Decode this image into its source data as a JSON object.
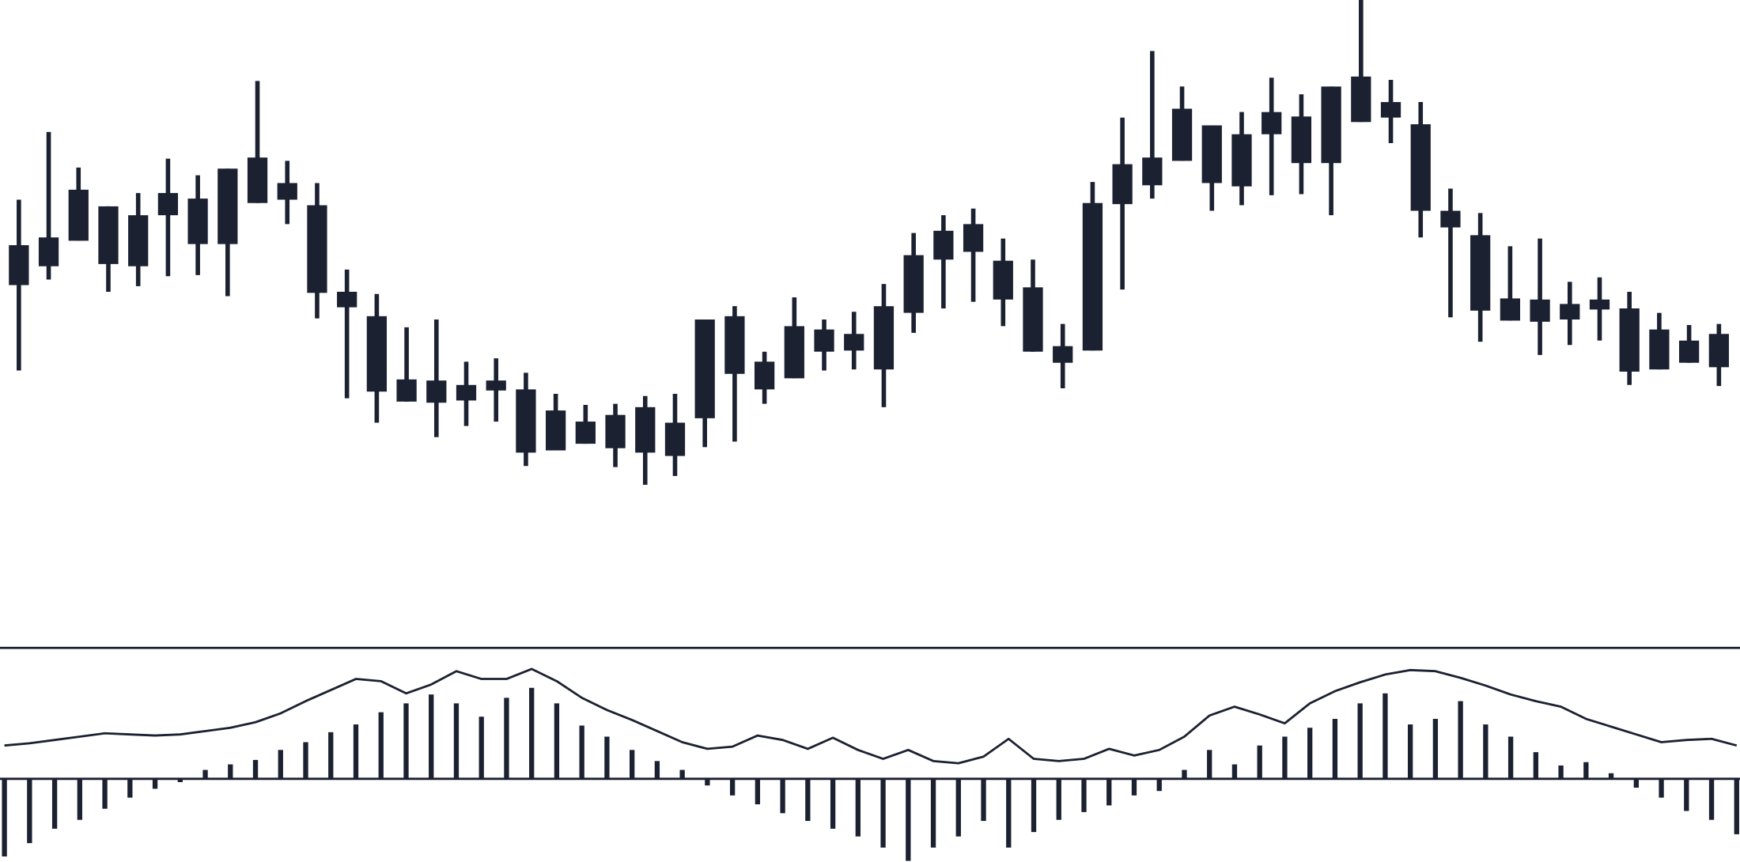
{
  "chart_data": [
    {
      "type": "candlestick",
      "color": "#1b2131",
      "categories": [
        null,
        null,
        null,
        null,
        null,
        null,
        null,
        null,
        null,
        null,
        null,
        null,
        null,
        null,
        null,
        null,
        null,
        null,
        null,
        null,
        null,
        null,
        null,
        null,
        null,
        null,
        null,
        null,
        null,
        null,
        null,
        null,
        null,
        null,
        null,
        null,
        null,
        null,
        null,
        null,
        null,
        null,
        null,
        null,
        null,
        null,
        null,
        null,
        null,
        null,
        null,
        null,
        null,
        null,
        null,
        null,
        null,
        null
      ],
      "open": [
        327,
        344,
        367,
        398,
        390,
        390,
        405,
        364,
        401,
        419,
        399,
        321,
        299,
        242,
        221,
        237,
        232,
        233,
        178,
        204,
        180,
        217,
        203,
        207,
        299,
        258,
        243,
        287,
        268,
        251,
        302,
        350,
        382,
        349,
        325,
        257,
        268,
        400,
        442,
        439,
        471,
        416,
        463,
        479,
        437,
        474,
        492,
        472,
        394,
        372,
        315,
        294,
        310,
        305,
        306,
        251,
        277,
        253
      ],
      "high": [
        404,
        465,
        433,
        398,
        410,
        441,
        426,
        432,
        511,
        439,
        419,
        341,
        319,
        289,
        296,
        258,
        261,
        248,
        229,
        219,
        220,
        227,
        229,
        296,
        308,
        267,
        316,
        296,
        303,
        328,
        374,
        390,
        396,
        369,
        350,
        292,
        420,
        478,
        538,
        506,
        471,
        483,
        514,
        499,
        506,
        584,
        512,
        492,
        414,
        392,
        362,
        369,
        330,
        334,
        321,
        302,
        291,
        292
      ],
      "low": [
        250,
        332,
        367,
        321,
        326,
        335,
        336,
        317,
        401,
        382,
        297,
        225,
        203,
        222,
        190,
        200,
        204,
        164,
        178,
        184,
        163,
        147,
        155,
        181,
        186,
        220,
        243,
        250,
        251,
        217,
        284,
        306,
        312,
        290,
        267,
        234,
        268,
        323,
        405,
        439,
        394,
        399,
        408,
        409,
        390,
        474,
        455,
        370,
        298,
        276,
        295,
        264,
        273,
        277,
        237,
        251,
        257,
        236
      ],
      "close": [
        363,
        370,
        413,
        346,
        344,
        410,
        364,
        432,
        442,
        404,
        320,
        307,
        231,
        222,
        241,
        223,
        241,
        176,
        214,
        184,
        210,
        176,
        173,
        296,
        247,
        233,
        290,
        267,
        283,
        308,
        354,
        376,
        357,
        314,
        267,
        272,
        401,
        436,
        417,
        486,
        419,
        463,
        483,
        437,
        506,
        515,
        478,
        394,
        379,
        304,
        295,
        314,
        296,
        314,
        249,
        287,
        257,
        283
      ],
      "ylim": [
        0,
        584
      ]
    },
    {
      "type": "bar",
      "categories": [
        null,
        null,
        null,
        null,
        null,
        null,
        null,
        null,
        null,
        null,
        null,
        null,
        null,
        null,
        null,
        null,
        null,
        null,
        null,
        null,
        null,
        null,
        null,
        null,
        null,
        null,
        null,
        null,
        null,
        null,
        null,
        null,
        null,
        null,
        null,
        null,
        null,
        null,
        null,
        null,
        null,
        null,
        null,
        null,
        null,
        null,
        null,
        null,
        null,
        null,
        null,
        null,
        null,
        null,
        null,
        null,
        null,
        null,
        null,
        null,
        null,
        null,
        null,
        null,
        null,
        null,
        null,
        null,
        null,
        null
      ],
      "series": [
        {
          "color": "#1b2131",
          "values": [
            -70,
            -58,
            -45,
            -37,
            -27,
            -17,
            -9,
            -3,
            8,
            13,
            17,
            26,
            33,
            42,
            49,
            60,
            68,
            76,
            68,
            56,
            73,
            82,
            68,
            48,
            38,
            26,
            16,
            8,
            -6,
            -15,
            -23,
            -31,
            -38,
            -45,
            -52,
            -62,
            -74,
            -62,
            -52,
            -38,
            -62,
            -48,
            -37,
            -30,
            -24,
            -15,
            -11,
            8,
            26,
            13,
            30,
            38,
            46,
            54,
            68,
            77,
            49,
            54,
            70,
            49,
            38,
            24,
            12,
            15,
            5,
            -8,
            -17,
            -29,
            -37,
            -50
          ]
        },
        {
          "type": "line",
          "color": "#1b2131",
          "values": [
            30,
            32,
            35,
            38,
            41,
            40,
            39,
            40,
            43,
            46,
            51,
            59,
            70,
            80,
            90,
            88,
            77,
            85,
            97,
            90,
            90,
            99,
            88,
            73,
            62,
            53,
            43,
            33,
            27,
            29,
            39,
            35,
            27,
            37,
            26,
            18,
            26,
            16,
            14,
            20,
            36,
            18,
            16,
            18,
            27,
            21,
            26,
            38,
            57,
            65,
            58,
            50,
            68,
            79,
            87,
            94,
            98,
            97,
            91,
            84,
            76,
            70,
            65,
            54,
            47,
            40,
            33,
            35,
            36,
            30
          ]
        }
      ],
      "ylim": [
        -75,
        118
      ]
    }
  ]
}
